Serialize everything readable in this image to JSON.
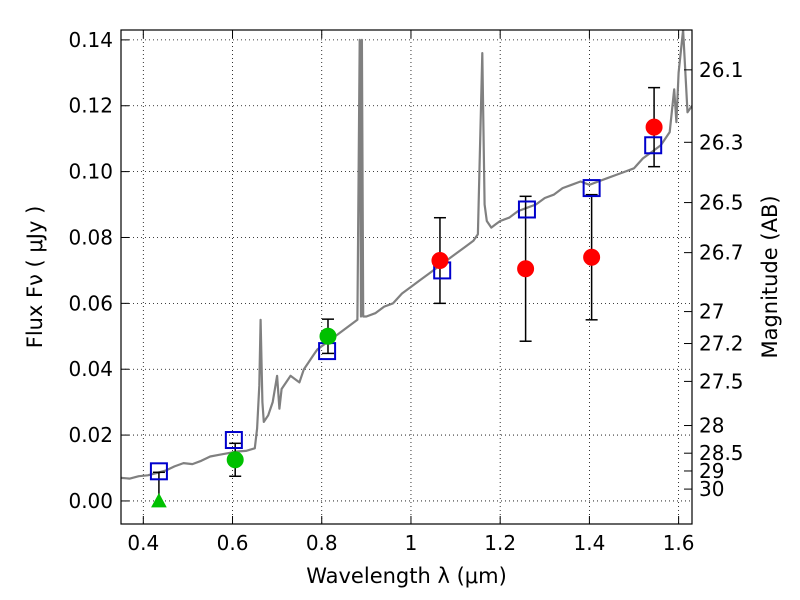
{
  "chart_data": {
    "type": "scatter",
    "xlabel": "Wavelength  λ (μm)",
    "ylabel": "Flux  Fν  ( μJy )",
    "ylabel_right": "Magnitude (AB)",
    "xlim": [
      0.35,
      1.63
    ],
    "ylim": [
      -0.007,
      0.143
    ],
    "grid": true,
    "x_ticks": [
      0.4,
      0.6,
      0.8,
      1.0,
      1.2,
      1.4,
      1.6
    ],
    "x_tick_labels": [
      "0.4",
      "0.6",
      "0.8",
      "1",
      "1.2",
      "1.4",
      "1.6"
    ],
    "y_ticks": [
      0.0,
      0.02,
      0.04,
      0.06,
      0.08,
      0.1,
      0.12,
      0.14
    ],
    "y_tick_labels": [
      "0.00",
      "0.02",
      "0.04",
      "0.06",
      "0.08",
      "0.10",
      "0.12",
      "0.14"
    ],
    "right_axis_ticks": [
      {
        "label": "26.1",
        "flux": 0.1309
      },
      {
        "label": "26.3",
        "flux": 0.1089
      },
      {
        "label": "26.5",
        "flux": 0.0906
      },
      {
        "label": "26.7",
        "flux": 0.0754
      },
      {
        "label": "27",
        "flux": 0.0575
      },
      {
        "label": "27.2",
        "flux": 0.0478
      },
      {
        "label": "27.5",
        "flux": 0.0363
      },
      {
        "label": "28",
        "flux": 0.0229
      },
      {
        "label": "28.5",
        "flux": 0.0145
      },
      {
        "label": "29",
        "flux": 0.0091
      },
      {
        "label": "30",
        "flux": 0.0036
      }
    ],
    "series": [
      {
        "kind": "line",
        "color": "#808080",
        "values": [
          [
            0.35,
            0.007
          ],
          [
            0.37,
            0.0068
          ],
          [
            0.39,
            0.0075
          ],
          [
            0.41,
            0.0078
          ],
          [
            0.43,
            0.0085
          ],
          [
            0.45,
            0.0092
          ],
          [
            0.47,
            0.0105
          ],
          [
            0.49,
            0.0115
          ],
          [
            0.51,
            0.0112
          ],
          [
            0.53,
            0.0122
          ],
          [
            0.55,
            0.0135
          ],
          [
            0.57,
            0.014
          ],
          [
            0.59,
            0.0145
          ],
          [
            0.61,
            0.015
          ],
          [
            0.63,
            0.0152
          ],
          [
            0.65,
            0.016
          ],
          [
            0.655,
            0.022
          ],
          [
            0.66,
            0.035
          ],
          [
            0.663,
            0.055
          ],
          [
            0.667,
            0.03
          ],
          [
            0.67,
            0.024
          ],
          [
            0.68,
            0.026
          ],
          [
            0.69,
            0.03
          ],
          [
            0.7,
            0.038
          ],
          [
            0.705,
            0.028
          ],
          [
            0.71,
            0.034
          ],
          [
            0.72,
            0.036
          ],
          [
            0.73,
            0.038
          ],
          [
            0.74,
            0.037
          ],
          [
            0.75,
            0.036
          ],
          [
            0.76,
            0.04
          ],
          [
            0.77,
            0.042
          ],
          [
            0.78,
            0.044
          ],
          [
            0.79,
            0.046
          ],
          [
            0.8,
            0.047
          ],
          [
            0.82,
            0.049
          ],
          [
            0.84,
            0.051
          ],
          [
            0.86,
            0.053
          ],
          [
            0.88,
            0.055
          ],
          [
            0.885,
            0.14
          ],
          [
            0.888,
            0.056
          ],
          [
            0.89,
            0.14
          ],
          [
            0.893,
            0.056
          ],
          [
            0.9,
            0.056
          ],
          [
            0.92,
            0.057
          ],
          [
            0.94,
            0.059
          ],
          [
            0.96,
            0.06
          ],
          [
            0.98,
            0.063
          ],
          [
            1.0,
            0.065
          ],
          [
            1.02,
            0.067
          ],
          [
            1.04,
            0.069
          ],
          [
            1.06,
            0.071
          ],
          [
            1.08,
            0.073
          ],
          [
            1.1,
            0.075
          ],
          [
            1.12,
            0.077
          ],
          [
            1.14,
            0.079
          ],
          [
            1.15,
            0.081
          ],
          [
            1.16,
            0.136
          ],
          [
            1.165,
            0.09
          ],
          [
            1.17,
            0.085
          ],
          [
            1.18,
            0.083
          ],
          [
            1.19,
            0.084
          ],
          [
            1.2,
            0.085
          ],
          [
            1.22,
            0.086
          ],
          [
            1.24,
            0.088
          ],
          [
            1.26,
            0.089
          ],
          [
            1.28,
            0.09
          ],
          [
            1.3,
            0.092
          ],
          [
            1.32,
            0.093
          ],
          [
            1.34,
            0.095
          ],
          [
            1.36,
            0.096
          ],
          [
            1.38,
            0.097
          ],
          [
            1.4,
            0.096
          ],
          [
            1.42,
            0.097
          ],
          [
            1.44,
            0.098
          ],
          [
            1.46,
            0.099
          ],
          [
            1.48,
            0.1
          ],
          [
            1.5,
            0.101
          ],
          [
            1.52,
            0.104
          ],
          [
            1.54,
            0.106
          ],
          [
            1.56,
            0.108
          ],
          [
            1.58,
            0.112
          ],
          [
            1.59,
            0.125
          ],
          [
            1.595,
            0.115
          ],
          [
            1.6,
            0.13
          ],
          [
            1.61,
            0.143
          ],
          [
            1.62,
            0.118
          ],
          [
            1.63,
            0.12
          ]
        ]
      },
      {
        "kind": "open-square",
        "color": "#0000cc",
        "values": [
          [
            0.435,
            0.009
          ],
          [
            0.603,
            0.0185
          ],
          [
            0.812,
            0.0455
          ],
          [
            1.07,
            0.07
          ],
          [
            1.26,
            0.0885
          ],
          [
            1.405,
            0.095
          ],
          [
            1.543,
            0.108
          ]
        ]
      },
      {
        "kind": "filled-circle",
        "color": "#00c000",
        "values": [
          [
            0.606,
            0.0125
          ],
          [
            0.814,
            0.05
          ]
        ],
        "errors": [
          0.005,
          0.0052
        ]
      },
      {
        "kind": "upper-limit-triangle",
        "color": "#00c000",
        "values": [
          [
            0.435,
            -0.0003
          ]
        ],
        "error_top": 0.009
      },
      {
        "kind": "filled-circle",
        "color": "#ff0000",
        "values": [
          [
            1.065,
            0.073
          ],
          [
            1.257,
            0.0705
          ],
          [
            1.405,
            0.074
          ],
          [
            1.545,
            0.1135
          ]
        ],
        "errors": [
          0.013,
          0.022,
          0.019,
          0.012
        ]
      }
    ]
  }
}
